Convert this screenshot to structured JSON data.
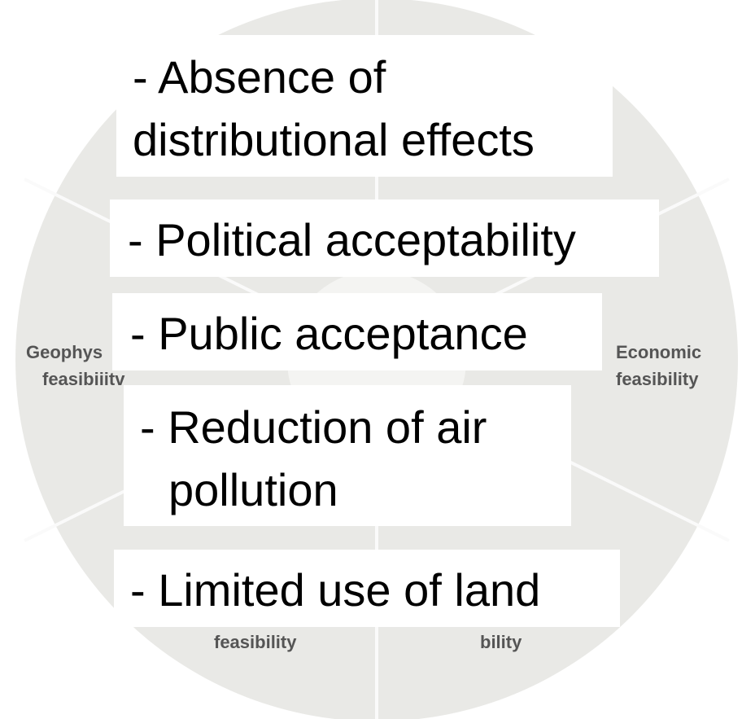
{
  "background_labels": [
    {
      "lines": [
        "Geophys",
        "feasibiiitv"
      ]
    },
    {
      "lines": [
        "Economic",
        "feasibility"
      ]
    },
    {
      "lines": [
        "feasibility"
      ]
    },
    {
      "lines": [
        "bility"
      ]
    }
  ],
  "boxes": [
    {
      "lines": [
        "- Absence of",
        "distributional effects"
      ]
    },
    {
      "lines": [
        "- Political acceptability"
      ]
    },
    {
      "lines": [
        "- Public acceptance"
      ]
    },
    {
      "lines": [
        "- Reduction of air",
        "pollution"
      ]
    },
    {
      "lines": [
        "- Limited use of land"
      ]
    }
  ]
}
